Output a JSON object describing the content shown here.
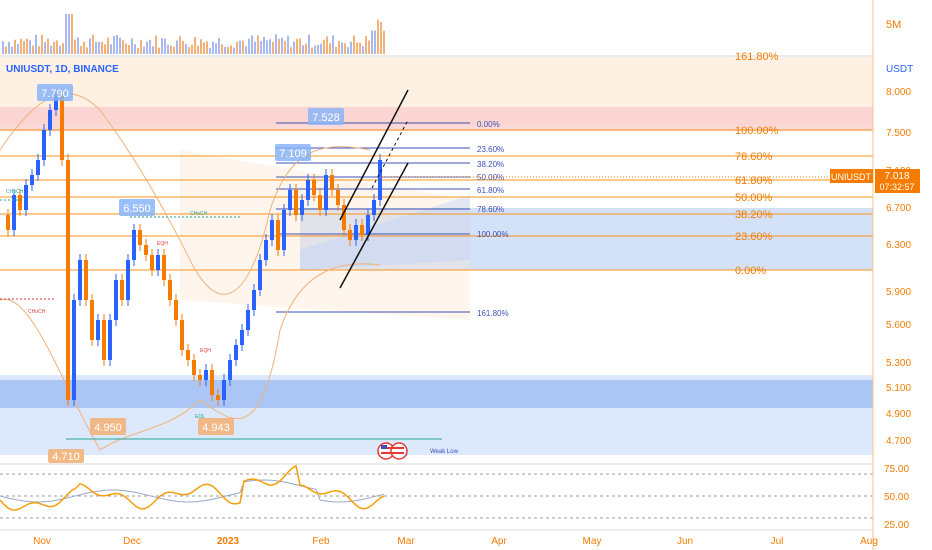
{
  "symbol": "UNIUSDT, 1D, BINANCE",
  "currency": "USDT",
  "volume_label": "5M",
  "price_tag": {
    "symbol": "UNIUSDT",
    "price": "7.018",
    "countdown": "07:32:57"
  },
  "x_labels": [
    "Nov",
    "Dec",
    "2023",
    "Feb",
    "Mar",
    "Apr",
    "May",
    "Jun",
    "Jul",
    "Aug"
  ],
  "price_ticks": [
    "8.000",
    "7.500",
    "7.100",
    "6.700",
    "6.300",
    "5.900",
    "5.600",
    "5.300",
    "5.100",
    "4.900",
    "4.700"
  ],
  "rsi_ticks": [
    "75.00",
    "50.00",
    "25.00"
  ],
  "markers": {
    "high1": "7.790",
    "mid1": "6.550",
    "high2": "7.528",
    "mid2": "7.109",
    "low1": "4.950",
    "low2": "4.943",
    "low0": "4.710"
  },
  "fib_big": [
    "161.80%",
    "100.00%",
    "78.60%",
    "61.80%",
    "50.00%",
    "38.20%",
    "23.60%",
    "0.00%"
  ],
  "fib_small": [
    "0.00%",
    "23.60%",
    "38.20%",
    "50.00%",
    "61.80%",
    "78.60%",
    "100.00%",
    "161.80%"
  ],
  "annotations": {
    "weak_low": "Weak Low",
    "choch": "CHoCH",
    "eqh": "EQH",
    "eql": "EQL",
    "bos": "BOS"
  },
  "colors": {
    "up": "#2962ff",
    "down": "#f57c00",
    "orange_line": "#f7931a",
    "blue_line": "#3f51b5",
    "rsi": "#f59e0b"
  },
  "chart_data": {
    "type": "candlestick",
    "title": "UNIUSDT, 1D, BINANCE",
    "ylabel": "USDT",
    "ylim": [
      4.6,
      8.15
    ],
    "x_range": [
      "Oct 2022",
      "Aug 2023"
    ],
    "key_levels": {
      "swing_high": 7.79,
      "recent_high": 7.528,
      "local_high": 7.109,
      "dec_high": 6.55,
      "lows": [
        4.95,
        4.943,
        4.71
      ],
      "last_price": 7.018
    },
    "rsi": {
      "levels": [
        75,
        50,
        25
      ]
    }
  }
}
